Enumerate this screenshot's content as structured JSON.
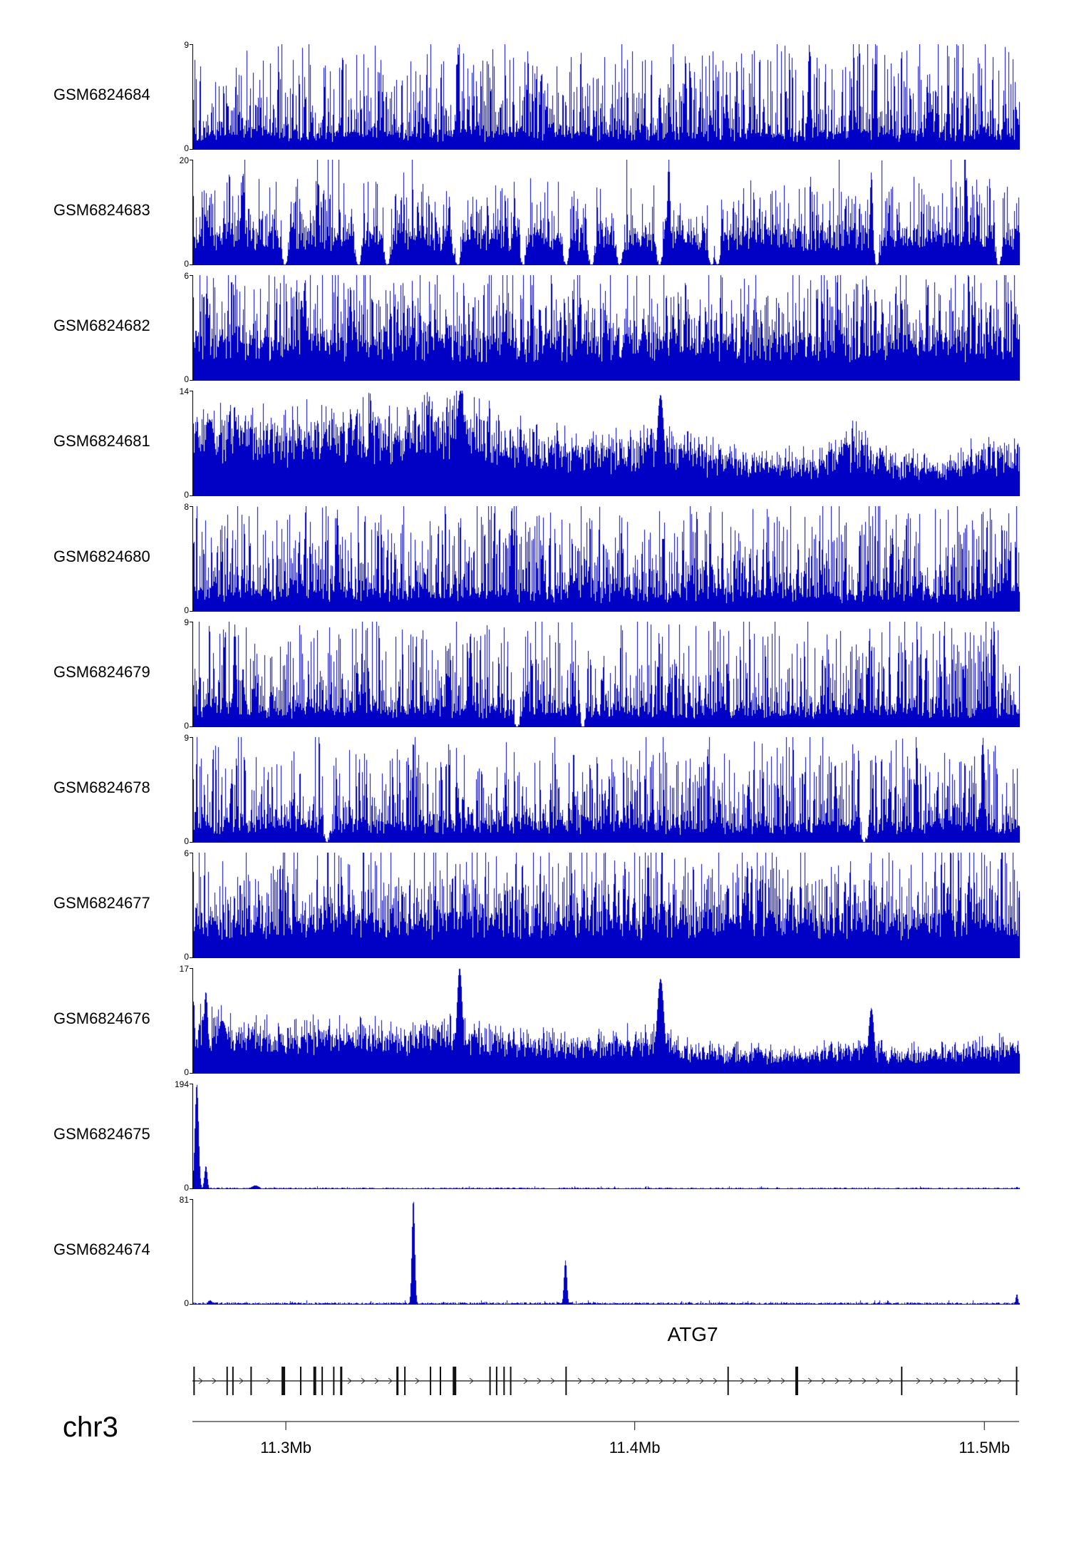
{
  "chart_data": {
    "type": "area",
    "subtype": "genome-browser-coverage-tracks",
    "title": "",
    "y_baseline_label": "0",
    "region": {
      "chromosome": "chr3",
      "ticks": [
        {
          "pos": 0.113,
          "label": "11.3Mb"
        },
        {
          "pos": 0.535,
          "label": "11.4Mb"
        },
        {
          "pos": 0.958,
          "label": "11.5Mb"
        }
      ]
    },
    "tracks": [
      {
        "name": "GSM6824684",
        "ymax": 9,
        "ymin": 0,
        "mode": "dense",
        "seed": 101,
        "base": 0.13,
        "spike": 0.78,
        "pow": 2.6,
        "tallProb": 0.035,
        "peaks": [
          {
            "p": 0.32,
            "h": 0.97,
            "w": 2
          },
          {
            "p": 0.745,
            "h": 1.0,
            "w": 2
          },
          {
            "p": 0.825,
            "h": 0.92,
            "w": 2
          }
        ]
      },
      {
        "name": "GSM6824683",
        "ymax": 20,
        "ymin": 0,
        "mode": "dense",
        "seed": 202,
        "base": 0.24,
        "spike": 0.55,
        "pow": 2.9,
        "tallProb": 0.02,
        "notches": 14,
        "peaks": [
          {
            "p": 0.06,
            "h": 0.88,
            "w": 2
          },
          {
            "p": 0.575,
            "h": 1.0,
            "w": 2
          },
          {
            "p": 0.82,
            "h": 0.88,
            "w": 2
          },
          {
            "p": 0.935,
            "h": 0.84,
            "w": 2
          }
        ]
      },
      {
        "name": "GSM6824682",
        "ymax": 6,
        "ymin": 0,
        "mode": "dense",
        "seed": 303,
        "base": 0.3,
        "spike": 0.6,
        "pow": 2.2,
        "tallProb": 0.05,
        "peaks": [
          {
            "p": 0.135,
            "h": 0.97,
            "w": 2
          },
          {
            "p": 0.19,
            "h": 0.9,
            "w": 2
          }
        ]
      },
      {
        "name": "GSM6824681",
        "ymax": 14,
        "ymin": 0,
        "mode": "blocky",
        "seed": 404,
        "base": 0.7,
        "spike": 0.5,
        "tallProb": 0.012,
        "envelope": [
          0.68,
          0.66,
          0.62,
          0.66,
          0.72,
          0.62,
          0.8,
          0.72,
          0.56,
          0.5,
          0.46,
          0.55,
          0.46,
          0.38,
          0.35,
          0.36,
          0.55,
          0.35,
          0.3,
          0.42,
          0.38
        ],
        "peaks": [
          {
            "p": 0.02,
            "h": 0.72,
            "w": 8
          },
          {
            "p": 0.323,
            "h": 1.0,
            "w": 6
          },
          {
            "p": 0.565,
            "h": 0.96,
            "w": 5
          }
        ]
      },
      {
        "name": "GSM6824680",
        "ymax": 8,
        "ymin": 0,
        "mode": "dense",
        "seed": 505,
        "base": 0.15,
        "spike": 0.78,
        "pow": 2.4,
        "tallProb": 0.04,
        "peaks": [
          {
            "p": 0.174,
            "h": 0.97,
            "w": 2
          },
          {
            "p": 0.385,
            "h": 1.0,
            "w": 2
          }
        ]
      },
      {
        "name": "GSM6824679",
        "ymax": 9,
        "ymin": 0,
        "mode": "dense",
        "seed": 606,
        "base": 0.14,
        "spike": 0.78,
        "pow": 2.5,
        "tallProb": 0.04,
        "notches": 2,
        "peaks": [
          {
            "p": 0.05,
            "h": 0.97,
            "w": 2
          },
          {
            "p": 0.335,
            "h": 0.9,
            "w": 2
          }
        ]
      },
      {
        "name": "GSM6824678",
        "ymax": 9,
        "ymin": 0,
        "mode": "dense",
        "seed": 707,
        "base": 0.14,
        "spike": 0.74,
        "pow": 2.5,
        "tallProb": 0.035,
        "notches": 2,
        "peaks": [
          {
            "p": 0.875,
            "h": 0.9,
            "w": 2
          },
          {
            "p": 0.955,
            "h": 1.0,
            "w": 2
          }
        ]
      },
      {
        "name": "GSM6824677",
        "ymax": 6,
        "ymin": 0,
        "mode": "dense",
        "seed": 808,
        "base": 0.3,
        "spike": 0.58,
        "pow": 2.2,
        "tallProb": 0.05,
        "peaks": [
          {
            "p": 0.55,
            "h": 0.97,
            "w": 2
          },
          {
            "p": 0.67,
            "h": 0.92,
            "w": 2
          }
        ]
      },
      {
        "name": "GSM6824676",
        "ymax": 17,
        "ymin": 0,
        "mode": "blocky",
        "seed": 909,
        "base": 0.68,
        "spike": 0.5,
        "tallProb": 0.012,
        "envelope": [
          0.5,
          0.44,
          0.4,
          0.42,
          0.4,
          0.38,
          0.46,
          0.4,
          0.34,
          0.32,
          0.33,
          0.36,
          0.26,
          0.22,
          0.22,
          0.22,
          0.3,
          0.22,
          0.22,
          0.26,
          0.3
        ],
        "peaks": [
          {
            "p": 0.015,
            "h": 0.78,
            "w": 3
          },
          {
            "p": 0.035,
            "h": 0.5,
            "w": 8
          },
          {
            "p": 0.322,
            "h": 1.0,
            "w": 4
          },
          {
            "p": 0.565,
            "h": 0.9,
            "w": 5
          },
          {
            "p": 0.82,
            "h": 0.62,
            "w": 4
          }
        ]
      },
      {
        "name": "GSM6824675",
        "ymax": 194,
        "ymin": 0,
        "mode": "peaks",
        "seed": 1010,
        "baseline": 0.008,
        "peaks": [
          {
            "p": 0.004,
            "h": 1.0,
            "w": 2.5
          },
          {
            "p": 0.015,
            "h": 0.22,
            "w": 2
          },
          {
            "p": 0.075,
            "h": 0.035,
            "w": 5
          },
          {
            "p": 0.996,
            "h": 0.02,
            "w": 2
          }
        ]
      },
      {
        "name": "GSM6824674",
        "ymax": 81,
        "ymin": 0,
        "mode": "peaks",
        "seed": 1111,
        "baseline": 0.012,
        "peaks": [
          {
            "p": 0.266,
            "h": 1.0,
            "w": 2
          },
          {
            "p": 0.45,
            "h": 0.42,
            "w": 2
          },
          {
            "p": 0.02,
            "h": 0.04,
            "w": 3
          },
          {
            "p": 0.6,
            "h": 0.025,
            "w": 2
          },
          {
            "p": 0.996,
            "h": 0.1,
            "w": 1.5
          }
        ]
      }
    ],
    "gene": {
      "name": "ATG7",
      "label_pos": 0.605,
      "strand": "right",
      "exons": [
        {
          "p": 0.002,
          "w": 2
        },
        {
          "p": 0.042,
          "w": 2
        },
        {
          "p": 0.049,
          "w": 2
        },
        {
          "p": 0.071,
          "w": 2
        },
        {
          "p": 0.11,
          "w": 5
        },
        {
          "p": 0.131,
          "w": 2
        },
        {
          "p": 0.148,
          "w": 4
        },
        {
          "p": 0.157,
          "w": 2
        },
        {
          "p": 0.171,
          "w": 2
        },
        {
          "p": 0.18,
          "w": 3
        },
        {
          "p": 0.248,
          "w": 3
        },
        {
          "p": 0.257,
          "w": 2
        },
        {
          "p": 0.288,
          "w": 2
        },
        {
          "p": 0.3,
          "w": 2
        },
        {
          "p": 0.317,
          "w": 5
        },
        {
          "p": 0.36,
          "w": 2
        },
        {
          "p": 0.368,
          "w": 2
        },
        {
          "p": 0.377,
          "w": 2
        },
        {
          "p": 0.385,
          "w": 2
        },
        {
          "p": 0.452,
          "w": 2
        },
        {
          "p": 0.648,
          "w": 2
        },
        {
          "p": 0.731,
          "w": 4
        },
        {
          "p": 0.858,
          "w": 2
        },
        {
          "p": 0.997,
          "w": 2
        }
      ]
    }
  },
  "style": {
    "signal_color": "#0101C6",
    "axis_color": "#333333",
    "gene_color": "#111111"
  }
}
